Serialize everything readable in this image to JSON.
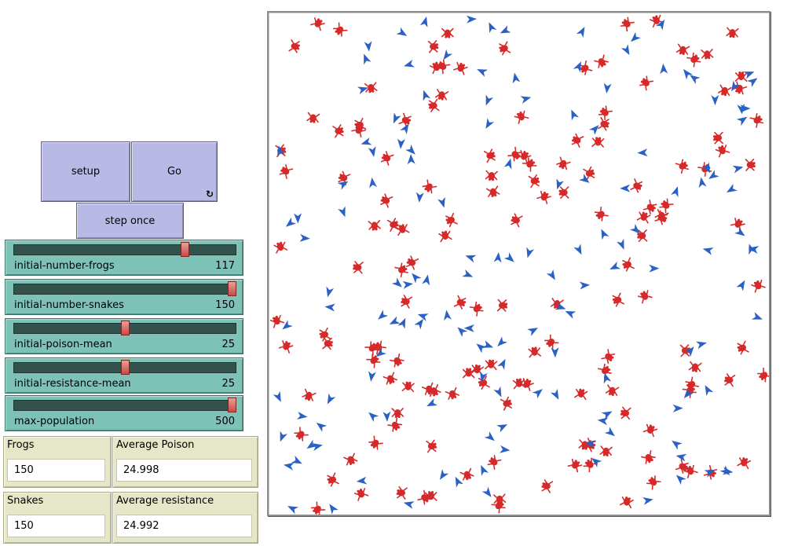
{
  "buttons": {
    "setup": "setup",
    "go": "Go",
    "go_forever_icon": "forever-loop-icon",
    "step_once": "step once"
  },
  "sliders": [
    {
      "label": "initial-number-frogs",
      "value": "117",
      "fraction": 0.78
    },
    {
      "label": "initial-number-snakes",
      "value": "150",
      "fraction": 1.0
    },
    {
      "label": "initial-poison-mean",
      "value": "25",
      "fraction": 0.5
    },
    {
      "label": "initial-resistance-mean",
      "value": "25",
      "fraction": 0.5
    },
    {
      "label": "max-population",
      "value": "500",
      "fraction": 1.0
    }
  ],
  "monitors": {
    "frogs": {
      "label": "Frogs",
      "value": "150"
    },
    "average_poison": {
      "label": "Average Poison",
      "value": "24.998"
    },
    "snakes": {
      "label": "Snakes",
      "value": "150"
    },
    "average_resistance": {
      "label": "Average resistance",
      "value": "24.992"
    }
  },
  "world": {
    "background": "#ffffff",
    "frog_color": "#d62a2a",
    "snake_color": "#2b61c4",
    "frog_count": 150,
    "snake_count": 150,
    "frog_icon": "frog-icon",
    "snake_icon": "snake-arrow-icon"
  },
  "colors": {
    "button": "#b9b9e6",
    "slider": "#7ec1b7",
    "monitor": "#e6e6c8"
  }
}
